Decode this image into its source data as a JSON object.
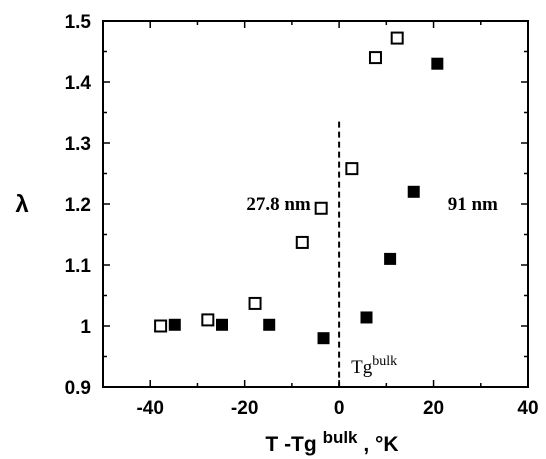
{
  "chart_data": {
    "type": "scatter",
    "xlabel": "T -Tg",
    "xlabel_sup": "bulk",
    "xlabel_unit": ", °K",
    "ylabel": "λ",
    "xlim": [
      -50,
      40
    ],
    "ylim": [
      0.9,
      1.5
    ],
    "xticks": [
      -40,
      -20,
      0,
      20,
      40
    ],
    "yticks": [
      0.9,
      1,
      1.1,
      1.2,
      1.3,
      1.4,
      1.5
    ],
    "ytick_labels": [
      "0.9",
      "1",
      "1.1",
      "1.2",
      "1.3",
      "1.4",
      "1.5"
    ],
    "grid": false,
    "series": [
      {
        "label": "27.8 nm",
        "marker": "open-square",
        "color": "#000000",
        "x": [
          -37.8,
          -27.8,
          -17.8,
          -7.8,
          -3.8,
          2.7,
          7.7,
          12.3
        ],
        "y": [
          1.0,
          1.01,
          1.037,
          1.137,
          1.193,
          1.258,
          1.44,
          1.472
        ]
      },
      {
        "label": "91 nm",
        "marker": "filled-square",
        "color": "#000000",
        "x": [
          -34.8,
          -24.8,
          -14.8,
          -3.3,
          5.8,
          10.8,
          15.8,
          20.8
        ],
        "y": [
          1.002,
          1.002,
          1.002,
          0.98,
          1.014,
          1.11,
          1.22,
          1.43
        ]
      }
    ],
    "reference_line": {
      "x": 0,
      "y_from": 0.9,
      "y_to": 1.335,
      "style": "dashed",
      "label": "Tg",
      "label_sup": "bulk"
    },
    "annotations": [
      {
        "text": "27.8 nm",
        "x": -6,
        "y": 1.2
      },
      {
        "text": "91 nm",
        "x": 23,
        "y": 1.2
      }
    ]
  }
}
